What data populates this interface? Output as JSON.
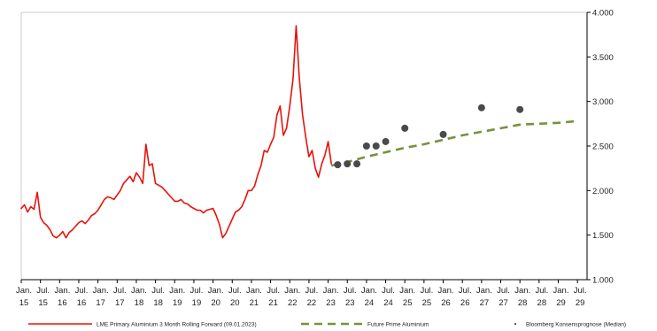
{
  "chart_data": {
    "type": "line",
    "title": "",
    "xlabel": "",
    "ylabel": "",
    "ylim": [
      1000,
      4000
    ],
    "y_ticks": [
      {
        "value": 1000,
        "label": "1.000"
      },
      {
        "value": 1500,
        "label": "1.500"
      },
      {
        "value": 2000,
        "label": "2.000"
      },
      {
        "value": 2500,
        "label": "2.500"
      },
      {
        "value": 3000,
        "label": "3.000"
      },
      {
        "value": 3500,
        "label": "3.500"
      },
      {
        "value": 4000,
        "label": "4.000"
      }
    ],
    "y_axis_side": "right",
    "grid": false,
    "x_range": [
      "2015-01",
      "2029-10"
    ],
    "x_ticks": [
      {
        "date": "2015-01",
        "month": "Jan.",
        "year": "15"
      },
      {
        "date": "2015-07",
        "month": "Jul.",
        "year": "15"
      },
      {
        "date": "2016-01",
        "month": "Jan.",
        "year": "16"
      },
      {
        "date": "2016-07",
        "month": "Jul.",
        "year": "16"
      },
      {
        "date": "2017-01",
        "month": "Jan.",
        "year": "17"
      },
      {
        "date": "2017-07",
        "month": "Jul.",
        "year": "17"
      },
      {
        "date": "2018-01",
        "month": "Jan.",
        "year": "18"
      },
      {
        "date": "2018-07",
        "month": "Jul.",
        "year": "18"
      },
      {
        "date": "2019-01",
        "month": "Jan.",
        "year": "19"
      },
      {
        "date": "2019-07",
        "month": "Jul.",
        "year": "19"
      },
      {
        "date": "2020-01",
        "month": "Jan.",
        "year": "20"
      },
      {
        "date": "2020-07",
        "month": "Jul.",
        "year": "20"
      },
      {
        "date": "2021-01",
        "month": "Jan.",
        "year": "21"
      },
      {
        "date": "2021-07",
        "month": "Jul.",
        "year": "21"
      },
      {
        "date": "2022-01",
        "month": "Jan.",
        "year": "22"
      },
      {
        "date": "2022-07",
        "month": "Jul.",
        "year": "22"
      },
      {
        "date": "2023-01",
        "month": "Jan.",
        "year": "23"
      },
      {
        "date": "2023-07",
        "month": "Jul.",
        "year": "23"
      },
      {
        "date": "2024-01",
        "month": "Jan.",
        "year": "24"
      },
      {
        "date": "2024-07",
        "month": "Jul.",
        "year": "24"
      },
      {
        "date": "2025-01",
        "month": "Jan.",
        "year": "25"
      },
      {
        "date": "2025-07",
        "month": "Jul.",
        "year": "25"
      },
      {
        "date": "2026-01",
        "month": "Jan.",
        "year": "26"
      },
      {
        "date": "2026-07",
        "month": "Jul.",
        "year": "26"
      },
      {
        "date": "2027-01",
        "month": "Jan.",
        "year": "27"
      },
      {
        "date": "2027-07",
        "month": "Jul.",
        "year": "27"
      },
      {
        "date": "2028-01",
        "month": "Jan.",
        "year": "28"
      },
      {
        "date": "2028-07",
        "month": "Jul.",
        "year": "28"
      },
      {
        "date": "2029-01",
        "month": "Jan.",
        "year": "29"
      },
      {
        "date": "2029-07",
        "month": "Jul.",
        "year": "29"
      }
    ],
    "series": [
      {
        "name": "LME Primary Aluminium 3 Month Rolling Forward (09.01.2023)",
        "kind": "line",
        "style": "solid",
        "color": "#e8120c",
        "points": [
          [
            "2015-01",
            1800
          ],
          [
            "2015-02",
            1840
          ],
          [
            "2015-03",
            1760
          ],
          [
            "2015-04",
            1820
          ],
          [
            "2015-05",
            1790
          ],
          [
            "2015-06",
            1980
          ],
          [
            "2015-07",
            1700
          ],
          [
            "2015-08",
            1640
          ],
          [
            "2015-09",
            1610
          ],
          [
            "2015-10",
            1560
          ],
          [
            "2015-11",
            1490
          ],
          [
            "2015-12",
            1470
          ],
          [
            "2016-01",
            1500
          ],
          [
            "2016-02",
            1540
          ],
          [
            "2016-03",
            1470
          ],
          [
            "2016-04",
            1530
          ],
          [
            "2016-05",
            1560
          ],
          [
            "2016-06",
            1600
          ],
          [
            "2016-07",
            1640
          ],
          [
            "2016-08",
            1660
          ],
          [
            "2016-09",
            1630
          ],
          [
            "2016-10",
            1670
          ],
          [
            "2016-11",
            1720
          ],
          [
            "2016-12",
            1740
          ],
          [
            "2017-01",
            1780
          ],
          [
            "2017-02",
            1840
          ],
          [
            "2017-03",
            1900
          ],
          [
            "2017-04",
            1930
          ],
          [
            "2017-05",
            1920
          ],
          [
            "2017-06",
            1900
          ],
          [
            "2017-07",
            1950
          ],
          [
            "2017-08",
            2000
          ],
          [
            "2017-09",
            2080
          ],
          [
            "2017-10",
            2120
          ],
          [
            "2017-11",
            2160
          ],
          [
            "2017-12",
            2100
          ],
          [
            "2018-01",
            2200
          ],
          [
            "2018-02",
            2150
          ],
          [
            "2018-03",
            2080
          ],
          [
            "2018-04",
            2520
          ],
          [
            "2018-05",
            2280
          ],
          [
            "2018-06",
            2300
          ],
          [
            "2018-07",
            2080
          ],
          [
            "2018-08",
            2060
          ],
          [
            "2018-09",
            2040
          ],
          [
            "2018-10",
            2000
          ],
          [
            "2018-11",
            1960
          ],
          [
            "2018-12",
            1920
          ],
          [
            "2019-01",
            1880
          ],
          [
            "2019-02",
            1880
          ],
          [
            "2019-03",
            1900
          ],
          [
            "2019-04",
            1860
          ],
          [
            "2019-05",
            1850
          ],
          [
            "2019-06",
            1820
          ],
          [
            "2019-07",
            1800
          ],
          [
            "2019-08",
            1780
          ],
          [
            "2019-09",
            1780
          ],
          [
            "2019-10",
            1750
          ],
          [
            "2019-11",
            1780
          ],
          [
            "2019-12",
            1790
          ],
          [
            "2020-01",
            1800
          ],
          [
            "2020-02",
            1720
          ],
          [
            "2020-03",
            1620
          ],
          [
            "2020-04",
            1470
          ],
          [
            "2020-05",
            1520
          ],
          [
            "2020-06",
            1600
          ],
          [
            "2020-07",
            1680
          ],
          [
            "2020-08",
            1760
          ],
          [
            "2020-09",
            1780
          ],
          [
            "2020-10",
            1820
          ],
          [
            "2020-11",
            1900
          ],
          [
            "2020-12",
            2000
          ],
          [
            "2021-01",
            2000
          ],
          [
            "2021-02",
            2050
          ],
          [
            "2021-03",
            2180
          ],
          [
            "2021-04",
            2280
          ],
          [
            "2021-05",
            2450
          ],
          [
            "2021-06",
            2430
          ],
          [
            "2021-07",
            2520
          ],
          [
            "2021-08",
            2600
          ],
          [
            "2021-09",
            2850
          ],
          [
            "2021-10",
            2950
          ],
          [
            "2021-11",
            2620
          ],
          [
            "2021-12",
            2700
          ],
          [
            "2022-01",
            2950
          ],
          [
            "2022-02",
            3250
          ],
          [
            "2022-03",
            3850
          ],
          [
            "2022-04",
            3250
          ],
          [
            "2022-05",
            2850
          ],
          [
            "2022-06",
            2600
          ],
          [
            "2022-07",
            2380
          ],
          [
            "2022-08",
            2450
          ],
          [
            "2022-09",
            2250
          ],
          [
            "2022-10",
            2150
          ],
          [
            "2022-11",
            2300
          ],
          [
            "2022-12",
            2400
          ],
          [
            "2023-01",
            2550
          ],
          [
            "2023-02",
            2300
          ]
        ]
      },
      {
        "name": "Future Prime Aluminium",
        "kind": "line",
        "style": "dashed",
        "color": "#76923c",
        "points": [
          [
            "2023-02",
            2280
          ],
          [
            "2023-07",
            2320
          ],
          [
            "2024-01",
            2380
          ],
          [
            "2024-07",
            2430
          ],
          [
            "2025-01",
            2480
          ],
          [
            "2025-07",
            2520
          ],
          [
            "2026-01",
            2570
          ],
          [
            "2026-07",
            2620
          ],
          [
            "2027-01",
            2660
          ],
          [
            "2027-07",
            2700
          ],
          [
            "2028-01",
            2740
          ],
          [
            "2028-07",
            2750
          ],
          [
            "2029-01",
            2760
          ],
          [
            "2029-07",
            2780
          ]
        ]
      },
      {
        "name": "Bloomberg Konsensprognose (Median)",
        "kind": "scatter",
        "color": "#4a4a4a",
        "points": [
          [
            "2023-04",
            2290
          ],
          [
            "2023-07",
            2300
          ],
          [
            "2023-10",
            2300
          ],
          [
            "2024-01",
            2500
          ],
          [
            "2024-04",
            2500
          ],
          [
            "2024-07",
            2550
          ],
          [
            "2025-01",
            2700
          ],
          [
            "2026-01",
            2630
          ],
          [
            "2027-01",
            2930
          ],
          [
            "2028-01",
            2910
          ]
        ]
      }
    ],
    "legend": {
      "position": "bottom",
      "entries": [
        {
          "label": "LME Primary Aluminium 3 Month Rolling Forward (09.01.2023)",
          "kind": "line",
          "color": "#e8120c"
        },
        {
          "label": "Future Prime Aluminium",
          "kind": "dashed",
          "color": "#76923c"
        },
        {
          "label": "Bloomberg Konsensprognose (Median)",
          "kind": "dot",
          "color": "#4a4a4a"
        }
      ]
    }
  }
}
